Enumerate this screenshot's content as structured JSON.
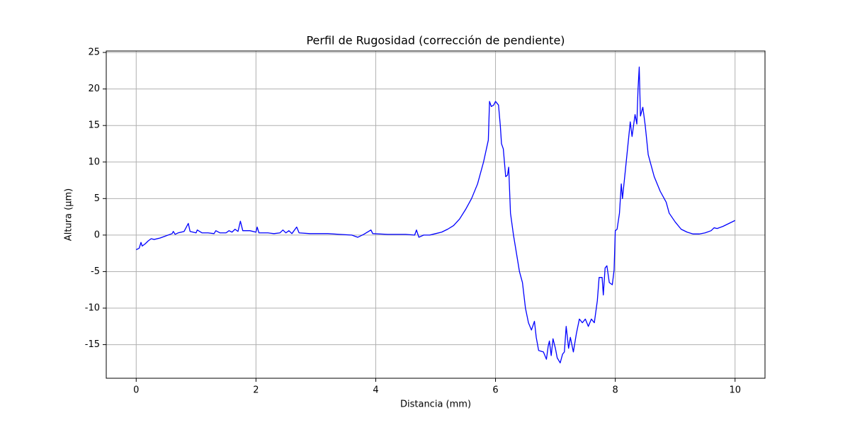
{
  "chart_data": {
    "type": "line",
    "title": "Perfil de Rugosidad (corrección de pendiente)",
    "x_label": "Distancia (mm)",
    "y_label": "Altura (µm)",
    "x": [
      0,
      0.05,
      0.08,
      0.1,
      0.15,
      0.2,
      0.25,
      0.3,
      0.4,
      0.5,
      0.6,
      0.62,
      0.65,
      0.7,
      0.8,
      0.87,
      0.9,
      1.0,
      1.02,
      1.1,
      1.2,
      1.3,
      1.33,
      1.4,
      1.5,
      1.55,
      1.6,
      1.65,
      1.7,
      1.74,
      1.78,
      1.9,
      2.0,
      2.02,
      2.05,
      2.2,
      2.3,
      2.4,
      2.45,
      2.5,
      2.55,
      2.6,
      2.68,
      2.72,
      2.9,
      3.0,
      3.2,
      3.4,
      3.6,
      3.7,
      3.8,
      3.92,
      3.95,
      4.2,
      4.5,
      4.65,
      4.68,
      4.72,
      4.8,
      4.9,
      5.0,
      5.1,
      5.2,
      5.3,
      5.4,
      5.5,
      5.6,
      5.7,
      5.8,
      5.88,
      5.9,
      5.93,
      5.97,
      6.0,
      6.05,
      6.08,
      6.1,
      6.13,
      6.17,
      6.2,
      6.22,
      6.25,
      6.3,
      6.35,
      6.4,
      6.45,
      6.5,
      6.55,
      6.6,
      6.65,
      6.68,
      6.72,
      6.8,
      6.85,
      6.88,
      6.9,
      6.93,
      6.96,
      7.0,
      7.03,
      7.08,
      7.12,
      7.15,
      7.18,
      7.22,
      7.25,
      7.3,
      7.35,
      7.4,
      7.45,
      7.5,
      7.55,
      7.6,
      7.65,
      7.7,
      7.73,
      7.78,
      7.8,
      7.83,
      7.86,
      7.9,
      7.95,
      7.98,
      8.0,
      8.03,
      8.07,
      8.1,
      8.12,
      8.17,
      8.25,
      8.28,
      8.33,
      8.36,
      8.38,
      8.4,
      8.42,
      8.46,
      8.5,
      8.55,
      8.65,
      8.75,
      8.85,
      8.9,
      9.0,
      9.1,
      9.2,
      9.3,
      9.4,
      9.5,
      9.6,
      9.65,
      9.7,
      9.8,
      9.9,
      10.0
    ],
    "values": [
      -2.0,
      -1.8,
      -1.0,
      -1.5,
      -1.2,
      -0.8,
      -0.5,
      -0.6,
      -0.4,
      -0.1,
      0.2,
      0.5,
      0.1,
      0.3,
      0.5,
      1.6,
      0.5,
      0.3,
      0.7,
      0.3,
      0.3,
      0.2,
      0.6,
      0.3,
      0.3,
      0.6,
      0.4,
      0.8,
      0.5,
      1.9,
      0.6,
      0.6,
      0.4,
      1.1,
      0.3,
      0.3,
      0.2,
      0.3,
      0.7,
      0.3,
      0.6,
      0.2,
      1.1,
      0.3,
      0.2,
      0.2,
      0.2,
      0.1,
      0.0,
      -0.3,
      0.1,
      0.7,
      0.2,
      0.1,
      0.1,
      0.0,
      0.7,
      -0.3,
      0.0,
      0.0,
      0.2,
      0.4,
      0.8,
      1.3,
      2.2,
      3.5,
      5.0,
      7.0,
      10.0,
      13.0,
      18.3,
      17.6,
      17.8,
      18.3,
      17.8,
      15.0,
      12.5,
      11.8,
      8.0,
      8.2,
      9.3,
      3.0,
      0.0,
      -2.5,
      -5.0,
      -6.5,
      -10.0,
      -12.0,
      -13.0,
      -11.8,
      -14.0,
      -15.8,
      -16.0,
      -17.0,
      -15.2,
      -14.5,
      -16.5,
      -14.2,
      -15.5,
      -16.8,
      -17.5,
      -16.3,
      -16.0,
      -12.5,
      -15.5,
      -14.0,
      -16.0,
      -13.5,
      -11.5,
      -12.0,
      -11.5,
      -12.5,
      -11.5,
      -12.0,
      -9.0,
      -5.8,
      -5.8,
      -8.2,
      -4.5,
      -4.2,
      -6.5,
      -6.8,
      -4.8,
      0.6,
      0.8,
      3.0,
      7.0,
      5.0,
      9.0,
      15.5,
      13.5,
      16.5,
      15.2,
      20.0,
      23.0,
      16.3,
      17.5,
      15.0,
      11.0,
      8.0,
      6.0,
      4.5,
      3.0,
      1.8,
      0.8,
      0.4,
      0.15,
      0.15,
      0.3,
      0.6,
      1.0,
      0.9,
      1.2,
      1.6,
      2.0
    ],
    "color": "#0000ff",
    "xlim": [
      -0.5,
      10.5
    ],
    "ylim": [
      -19.6,
      25.2
    ],
    "xticks": [
      0,
      2,
      4,
      6,
      8,
      10
    ],
    "yticks": [
      -15,
      -10,
      -5,
      0,
      5,
      10,
      15,
      20,
      25
    ],
    "grid": true
  }
}
